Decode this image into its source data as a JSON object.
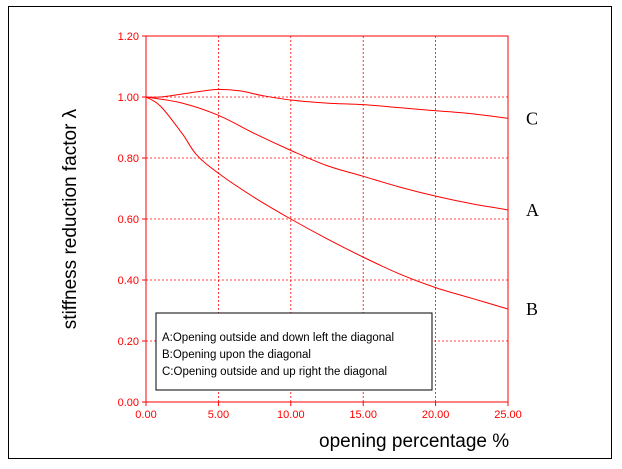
{
  "colors": {
    "axis": "#ff0000",
    "curve": "#ff0000",
    "grid": "#ff0000",
    "text": "#000000",
    "border": "#000000"
  },
  "chart_data": {
    "type": "line",
    "title": "",
    "xlabel": "opening percentage %",
    "ylabel": "stiffness reduction factor λ",
    "xlim": [
      0,
      25
    ],
    "ylim": [
      0,
      1.2
    ],
    "x_ticks": [
      "0.00",
      "5.00",
      "10.00",
      "15.00",
      "20.00",
      "25.00"
    ],
    "y_ticks": [
      "0.00",
      "0.20",
      "0.40",
      "0.60",
      "0.80",
      "1.00",
      "1.20"
    ],
    "grid": true,
    "legend_position": "lower-left",
    "legend": [
      "A:Opening outside and down left the diagonal",
      "B:Opening upon the diagonal",
      "C:Opening outside and up right the diagonal"
    ],
    "series": [
      {
        "name": "A",
        "x": [
          0,
          2.5,
          5,
          7.5,
          10,
          12.5,
          15,
          17.5,
          20,
          22.5,
          25
        ],
        "y": [
          1.0,
          0.98,
          0.94,
          0.88,
          0.825,
          0.775,
          0.74,
          0.705,
          0.675,
          0.65,
          0.63
        ]
      },
      {
        "name": "B",
        "x": [
          0,
          1,
          2.5,
          3.5,
          5,
          7.5,
          10,
          12.5,
          15,
          17.5,
          20,
          22.5,
          25
        ],
        "y": [
          1.0,
          0.97,
          0.88,
          0.81,
          0.75,
          0.67,
          0.6,
          0.535,
          0.475,
          0.42,
          0.375,
          0.34,
          0.305
        ]
      },
      {
        "name": "C",
        "x": [
          0,
          1,
          2.5,
          4,
          5,
          6.5,
          8,
          10,
          12.5,
          15,
          17.5,
          20,
          22.5,
          25
        ],
        "y": [
          1.0,
          1.0,
          1.01,
          1.02,
          1.025,
          1.02,
          1.005,
          0.99,
          0.98,
          0.975,
          0.965,
          0.955,
          0.945,
          0.93
        ]
      }
    ]
  }
}
